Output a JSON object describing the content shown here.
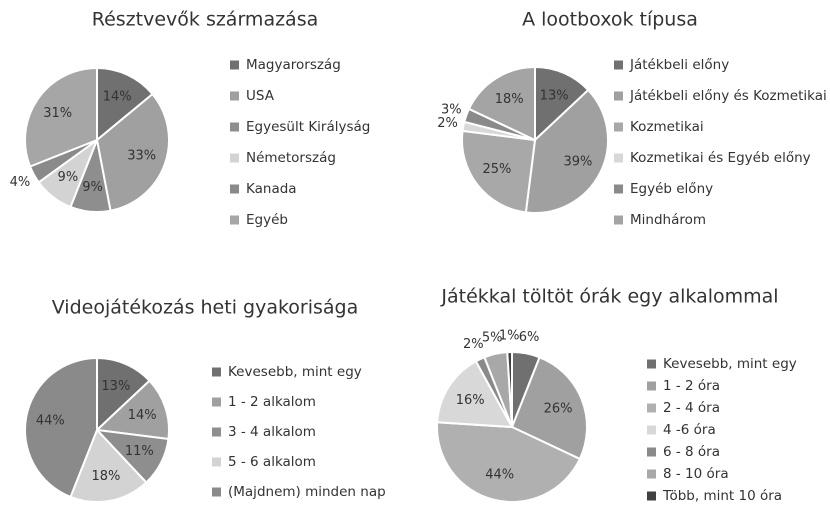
{
  "chart_data": [
    {
      "type": "pie",
      "title": "Résztvevők származása",
      "categories": [
        "Magyarország",
        "USA",
        "Egyesült Királyság",
        "Németország",
        "Kanada",
        "Egyéb"
      ],
      "values": [
        14,
        33,
        9,
        9,
        4,
        31
      ],
      "value_labels": [
        "14%",
        "33%",
        "9%",
        "9%",
        "4%",
        "31%"
      ],
      "colors": [
        "#707070",
        "#a0a0a0",
        "#8e8e8e",
        "#d3d3d3",
        "#8a8a8a",
        "#a6a6a6"
      ]
    },
    {
      "type": "pie",
      "title": "A lootboxok típusa",
      "categories": [
        "Játékbeli előny",
        "Játékbeli előny és Kozmetikai",
        "Kozmetikai",
        "Kozmetikai és Egyéb előny",
        "Egyéb előny",
        "Mindhárom"
      ],
      "values": [
        13,
        39,
        25,
        2,
        3,
        18
      ],
      "value_labels": [
        "13%",
        "39%",
        "25%",
        "2%",
        "3%",
        "18%"
      ],
      "colors": [
        "#707070",
        "#a0a0a0",
        "#a8a8a8",
        "#d8d8d8",
        "#8a8a8a",
        "#a4a4a4"
      ]
    },
    {
      "type": "pie",
      "title": "Videojátékozás heti gyakorisága",
      "categories": [
        "Kevesebb, mint egy",
        "1 - 2 alkalom",
        "3 - 4 alkalom",
        "5 - 6 alkalom",
        "(Majdnem) minden nap"
      ],
      "values": [
        13,
        14,
        11,
        18,
        44
      ],
      "value_labels": [
        "13%",
        "14%",
        "11%",
        "18%",
        "44%"
      ],
      "colors": [
        "#707070",
        "#a0a0a0",
        "#8e8e8e",
        "#d3d3d3",
        "#8a8a8a"
      ]
    },
    {
      "type": "pie",
      "title": "Játékkal töltöt órák egy alkalommal",
      "categories": [
        "Kevesebb, mint egy",
        "1 - 2 óra",
        "2 - 4 óra",
        "4 -6 óra",
        "6 - 8 óra",
        "8 - 10 óra",
        "Több, mint 10 óra"
      ],
      "values": [
        6,
        26,
        44,
        16,
        2,
        5,
        1
      ],
      "value_labels": [
        "6%",
        "26%",
        "44%",
        "16%",
        "2%",
        "5%",
        "1%"
      ],
      "colors": [
        "#707070",
        "#a0a0a0",
        "#b0b0b0",
        "#d8d8d8",
        "#8a8a8a",
        "#a8a8a8",
        "#404040"
      ]
    }
  ]
}
